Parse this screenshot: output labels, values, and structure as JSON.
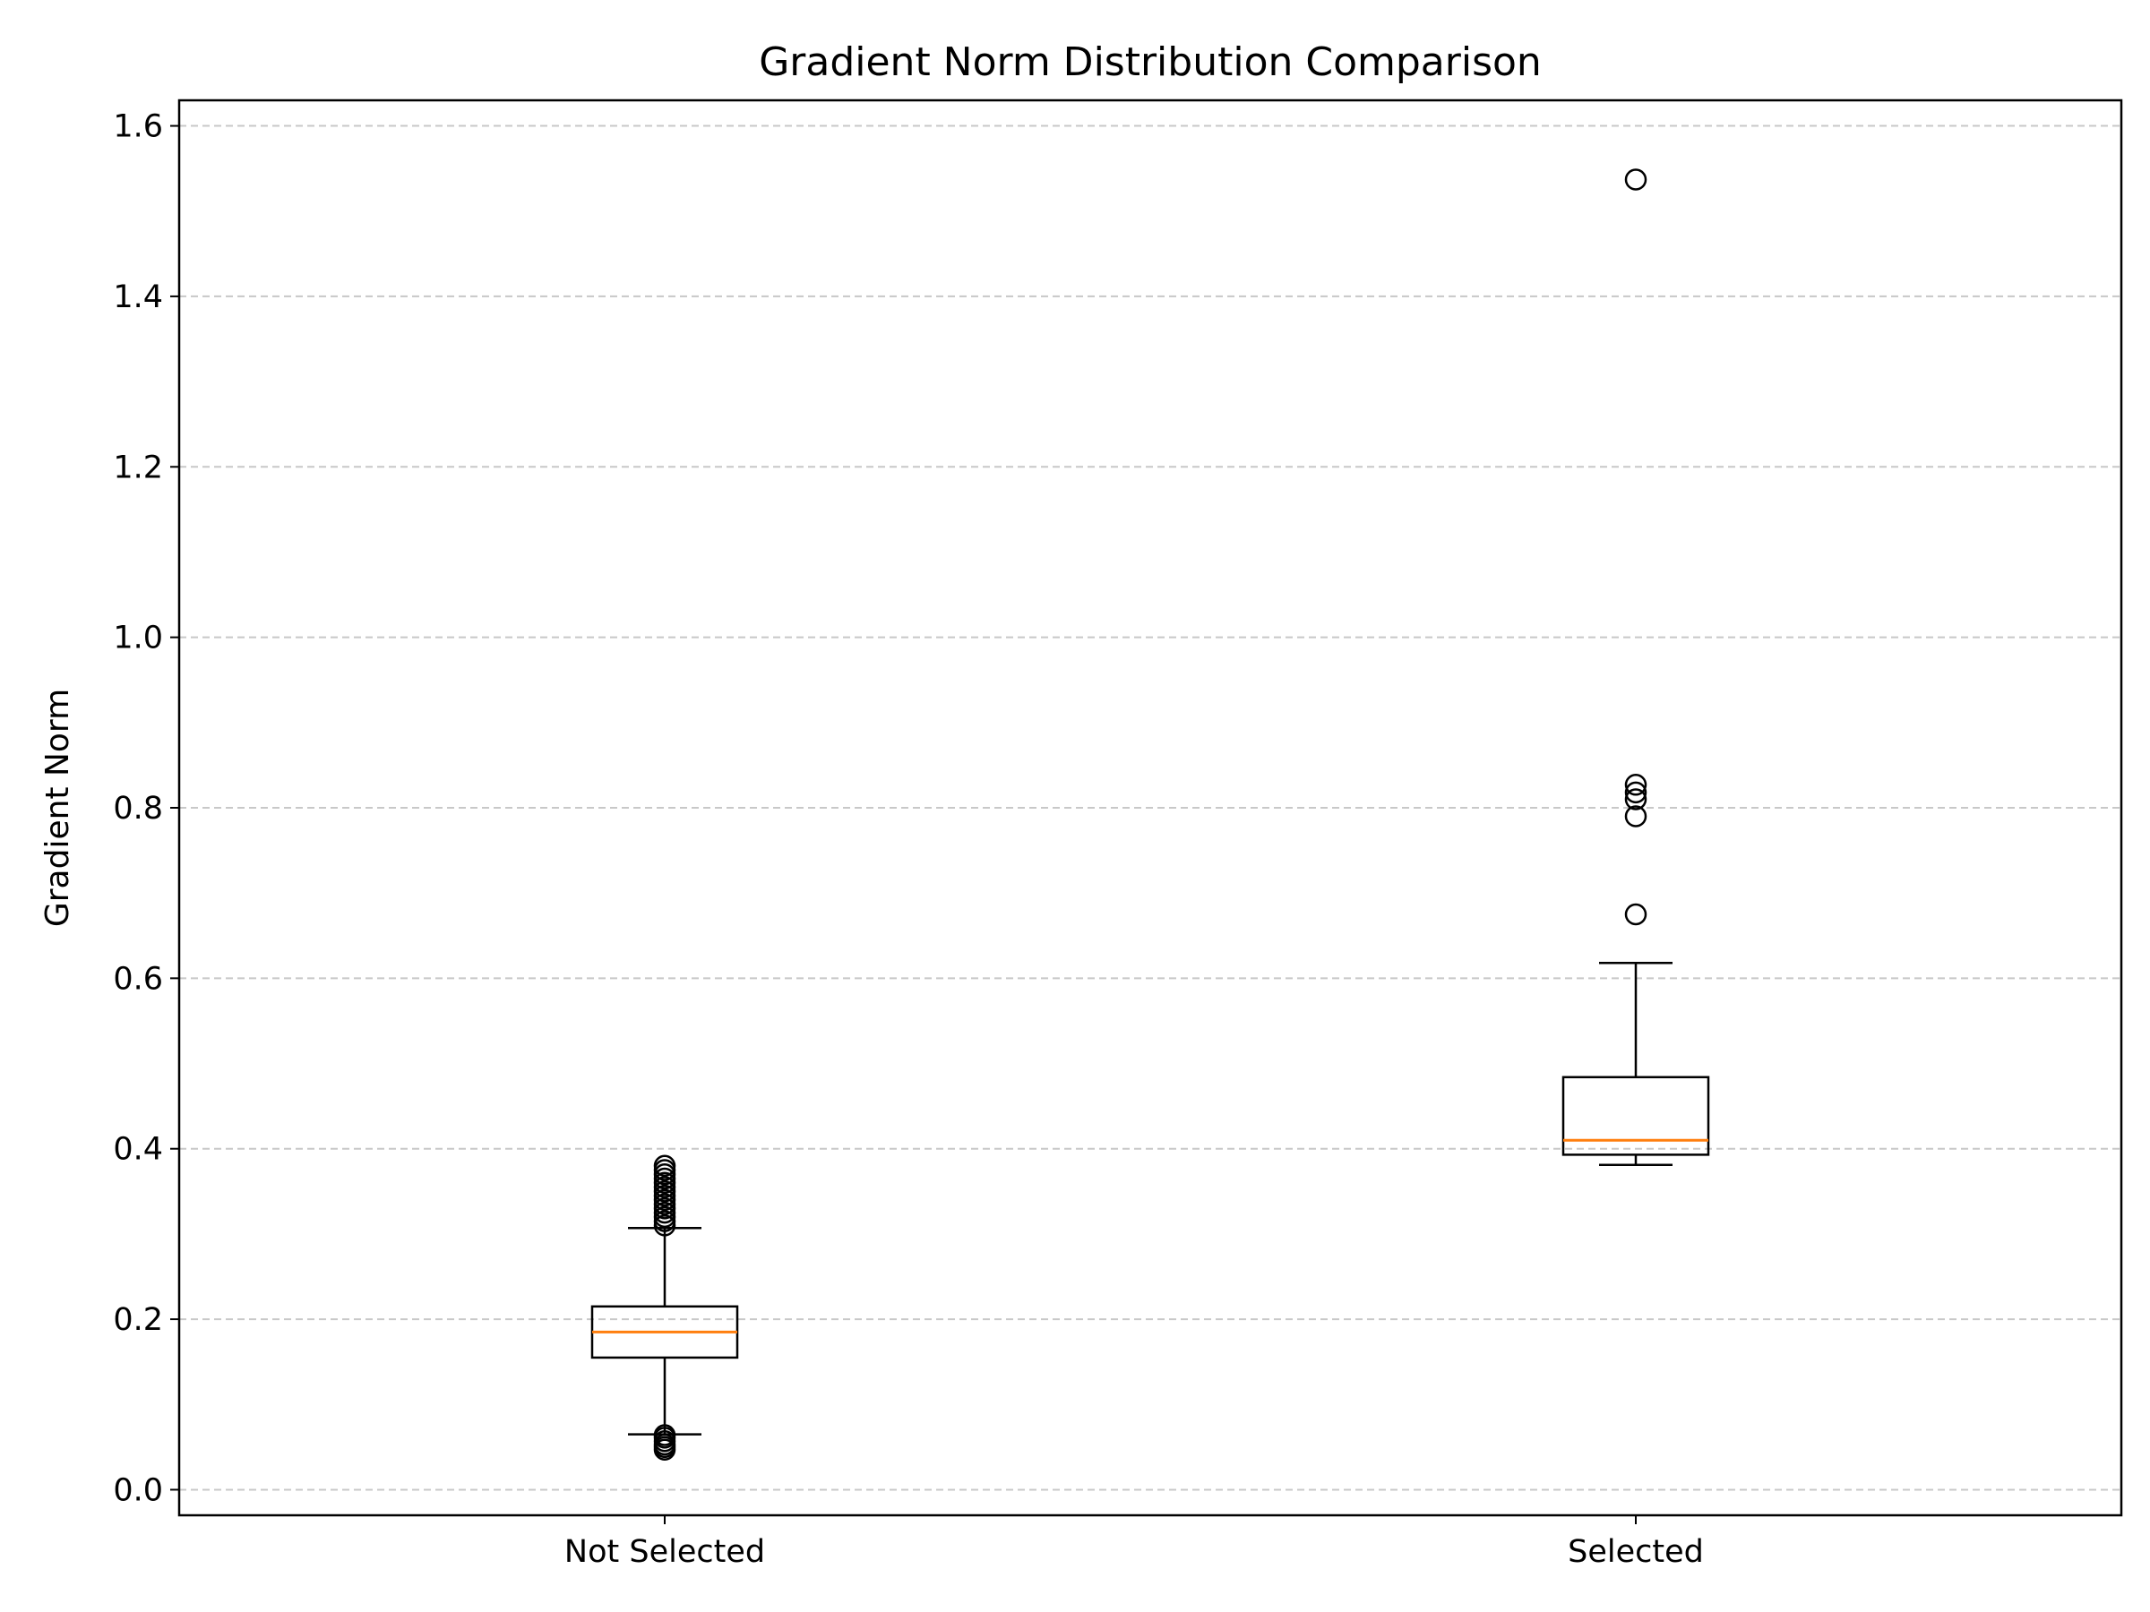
{
  "chart_data": {
    "type": "box",
    "title": "Gradient Norm Distribution Comparison",
    "xlabel": "",
    "ylabel": "Gradient Norm",
    "ylim": [
      -0.03,
      1.63
    ],
    "yticks": [
      0.0,
      0.2,
      0.4,
      0.6,
      0.8,
      1.0,
      1.2,
      1.4,
      1.6
    ],
    "ytick_labels": [
      "0.0",
      "0.2",
      "0.4",
      "0.6",
      "0.8",
      "1.0",
      "1.2",
      "1.4",
      "1.6"
    ],
    "grid": "y-dashed",
    "categories": [
      "Not Selected",
      "Selected"
    ],
    "boxes": [
      {
        "category": "Not Selected",
        "whisker_low": 0.065,
        "q1": 0.155,
        "median": 0.185,
        "q3": 0.215,
        "whisker_high": 0.307,
        "outliers": [
          0.047,
          0.05,
          0.053,
          0.057,
          0.061,
          0.064,
          0.31,
          0.315,
          0.32,
          0.325,
          0.33,
          0.335,
          0.34,
          0.345,
          0.35,
          0.355,
          0.36,
          0.365,
          0.37,
          0.375,
          0.38
        ]
      },
      {
        "category": "Selected",
        "whisker_low": 0.381,
        "q1": 0.393,
        "median": 0.41,
        "q3": 0.484,
        "whisker_high": 0.618,
        "outliers": [
          0.675,
          0.79,
          0.81,
          0.818,
          0.827,
          1.537
        ]
      }
    ],
    "colors": {
      "box": "#000000",
      "median": "#ff7f0e",
      "grid": "#c8c8c8"
    }
  }
}
